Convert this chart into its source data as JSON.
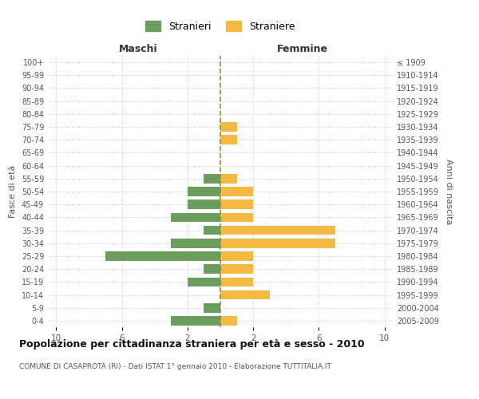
{
  "age_groups": [
    "0-4",
    "5-9",
    "10-14",
    "15-19",
    "20-24",
    "25-29",
    "30-34",
    "35-39",
    "40-44",
    "45-49",
    "50-54",
    "55-59",
    "60-64",
    "65-69",
    "70-74",
    "75-79",
    "80-84",
    "85-89",
    "90-94",
    "95-99",
    "100+"
  ],
  "birth_years": [
    "2005-2009",
    "2000-2004",
    "1995-1999",
    "1990-1994",
    "1985-1989",
    "1980-1984",
    "1975-1979",
    "1970-1974",
    "1965-1969",
    "1960-1964",
    "1955-1959",
    "1950-1954",
    "1945-1949",
    "1940-1944",
    "1935-1939",
    "1930-1934",
    "1925-1929",
    "1920-1924",
    "1915-1919",
    "1910-1914",
    "≤ 1909"
  ],
  "males": [
    3,
    1,
    0,
    2,
    1,
    7,
    3,
    1,
    3,
    2,
    2,
    1,
    0,
    0,
    0,
    0,
    0,
    0,
    0,
    0,
    0
  ],
  "females": [
    1,
    0,
    3,
    2,
    2,
    2,
    7,
    7,
    2,
    2,
    2,
    1,
    0,
    0,
    1,
    1,
    0,
    0,
    0,
    0,
    0
  ],
  "male_color": "#6b9e5e",
  "female_color": "#f5b942",
  "background_color": "#ffffff",
  "grid_color": "#c8c8c8",
  "center_line_color": "#8b8b4b",
  "title": "Popolazione per cittadinanza straniera per età e sesso - 2010",
  "subtitle": "COMUNE DI CASAPROTA (RI) - Dati ISTAT 1° gennaio 2010 - Elaborazione TUTTITALIA.IT",
  "xlabel_left": "Maschi",
  "xlabel_right": "Femmine",
  "ylabel_left": "Fasce di età",
  "ylabel_right": "Anni di nascita",
  "legend_male": "Stranieri",
  "legend_female": "Straniere",
  "xlim": 10.5,
  "xtick_positions": [
    -10,
    -6,
    -2,
    2,
    6,
    10
  ],
  "xtick_labels": [
    "10",
    "6",
    "2",
    "2",
    "6",
    "10"
  ]
}
